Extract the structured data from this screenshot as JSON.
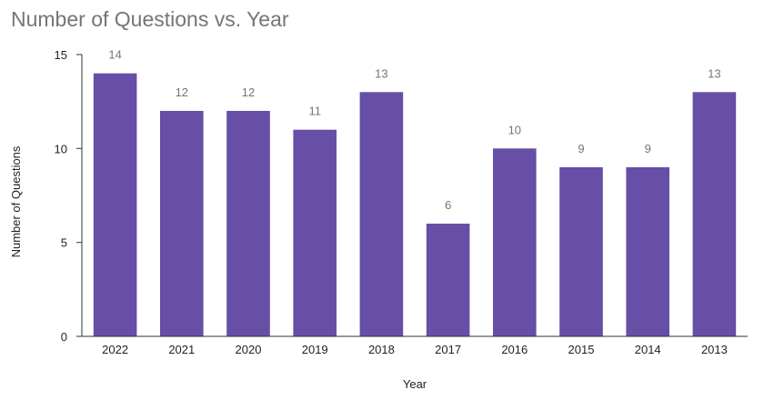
{
  "chart_data": {
    "type": "bar",
    "title": "Number of Questions vs. Year",
    "xlabel": "Year",
    "ylabel": "Number of Questions",
    "categories": [
      "2022",
      "2021",
      "2020",
      "2019",
      "2018",
      "2017",
      "2016",
      "2015",
      "2014",
      "2013"
    ],
    "values": [
      14,
      12,
      12,
      11,
      13,
      6,
      10,
      9,
      9,
      13
    ],
    "ylim": [
      0,
      15
    ],
    "yticks": [
      0,
      5,
      10,
      15
    ],
    "grid": false,
    "legend": "none",
    "bar_color": "#674ea7"
  }
}
